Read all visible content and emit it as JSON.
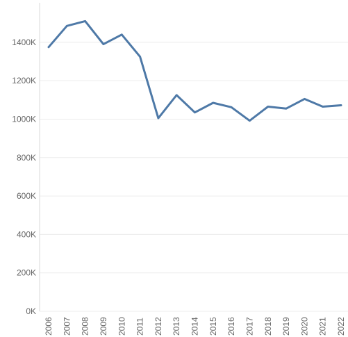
{
  "chart_data": {
    "type": "line",
    "title": "",
    "xlabel": "",
    "ylabel": "",
    "x": [
      "2006",
      "2007",
      "2008",
      "2009",
      "2010",
      "2011",
      "2012",
      "2013",
      "2014",
      "2015",
      "2016",
      "2017",
      "2018",
      "2019",
      "2020",
      "2021",
      "2022"
    ],
    "series": [
      {
        "values": [
          1375000,
          1485000,
          1510000,
          1390000,
          1440000,
          1325000,
          1005000,
          1125000,
          1035000,
          1085000,
          1062000,
          992000,
          1065000,
          1055000,
          1105000,
          1065000,
          1072000
        ]
      }
    ],
    "ylim": [
      0,
      1620000
    ],
    "yticks": [
      {
        "value": 0,
        "label": "0K"
      },
      {
        "value": 200000,
        "label": "200K"
      },
      {
        "value": 400000,
        "label": "400K"
      },
      {
        "value": 600000,
        "label": "600K"
      },
      {
        "value": 800000,
        "label": "800K"
      },
      {
        "value": 1000000,
        "label": "1000K"
      },
      {
        "value": 1200000,
        "label": "1200K"
      },
      {
        "value": 1400000,
        "label": "1400K"
      }
    ],
    "grid": true,
    "colors": {
      "line": "#4e79a7"
    }
  }
}
